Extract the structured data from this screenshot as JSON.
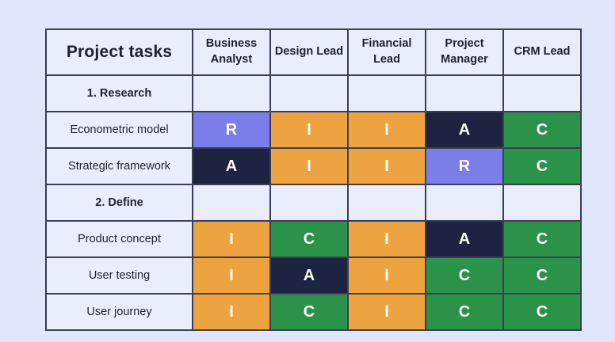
{
  "page": {
    "background_color": "#dfe5fa",
    "cell_background_color": "#eaeefc",
    "border_color": "#3a4053",
    "text_color": "#1b2233"
  },
  "raci_colors": {
    "R": "#7b7ee8",
    "A": "#1c2442",
    "C": "#2b9249",
    "I": "#eda440"
  },
  "table": {
    "headers": [
      "Project tasks",
      "Business Analyst",
      "Design Lead",
      "Financial Lead",
      "Project Manager",
      "CRM Lead"
    ],
    "rows": [
      {
        "type": "section",
        "label": "1. Research",
        "cells": [
          "",
          "",
          "",
          "",
          ""
        ]
      },
      {
        "type": "task",
        "label": "Econometric model",
        "cells": [
          "R",
          "I",
          "I",
          "A",
          "C"
        ]
      },
      {
        "type": "task",
        "label": "Strategic framework",
        "cells": [
          "A",
          "I",
          "I",
          "R",
          "C"
        ]
      },
      {
        "type": "section",
        "label": "2. Define",
        "cells": [
          "",
          "",
          "",
          "",
          ""
        ]
      },
      {
        "type": "task",
        "label": "Product concept",
        "cells": [
          "I",
          "C",
          "I",
          "A",
          "C"
        ]
      },
      {
        "type": "task",
        "label": "User testing",
        "cells": [
          "I",
          "A",
          "I",
          "C",
          "C"
        ]
      },
      {
        "type": "task",
        "label": "User journey",
        "cells": [
          "I",
          "C",
          "I",
          "C",
          "C"
        ]
      }
    ]
  }
}
